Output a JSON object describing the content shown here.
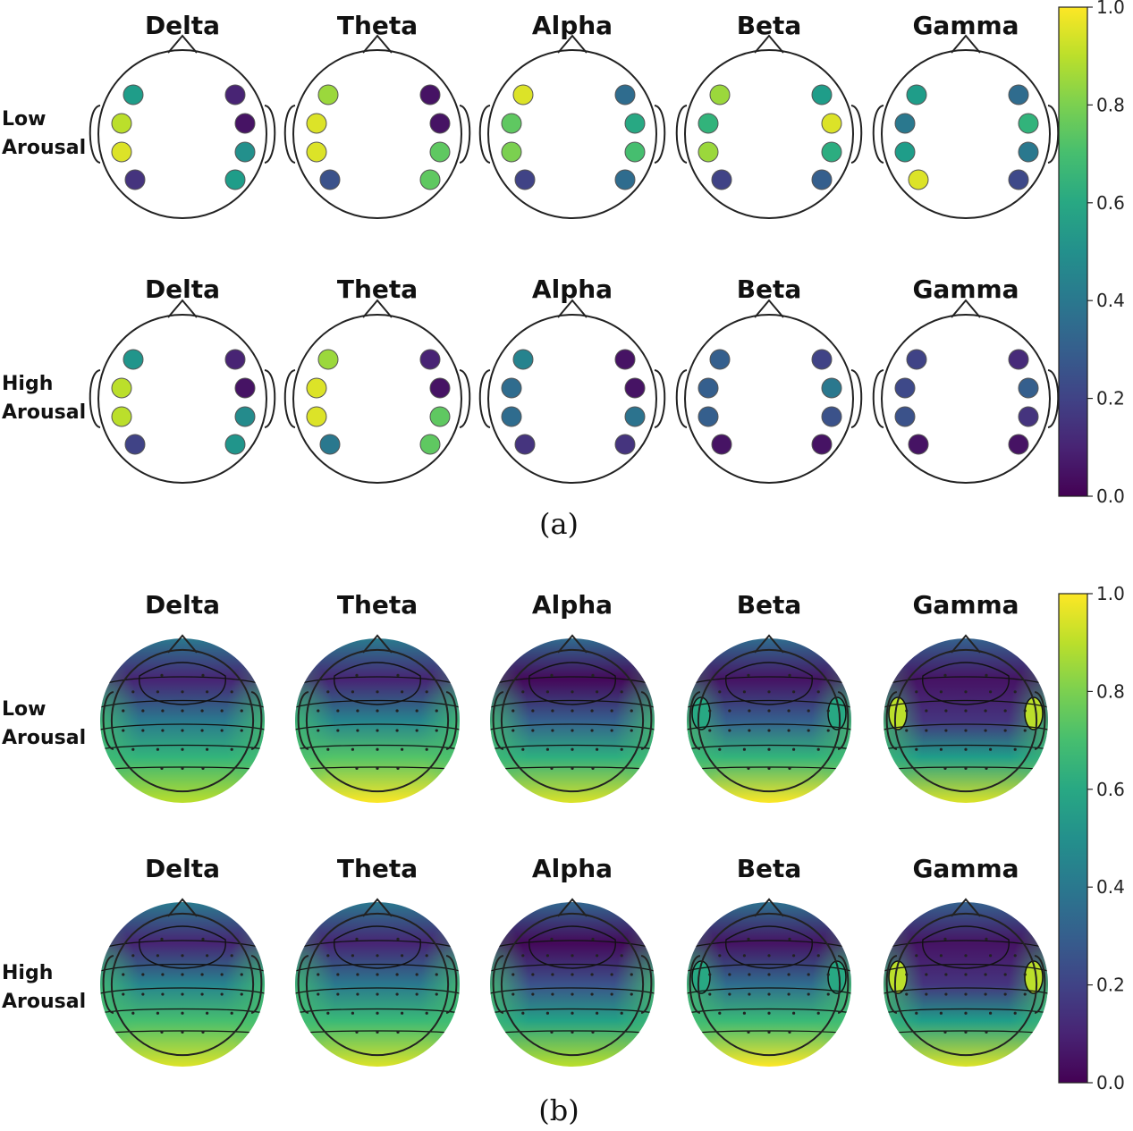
{
  "bands": [
    "Delta",
    "Theta",
    "Alpha",
    "Beta",
    "Gamma"
  ],
  "row_labels": {
    "low": [
      "Low",
      "Arousal"
    ],
    "high": [
      "High",
      "Arousal"
    ]
  },
  "panel_labels": {
    "a": "(a)",
    "b": "(b)"
  },
  "colorbar": {
    "colormap": "viridis",
    "range": [
      0,
      1
    ],
    "ticks": [
      "0.0",
      "0.2",
      "0.4",
      "0.6",
      "0.8",
      "1.0"
    ]
  },
  "panel_a": {
    "low": [
      [
        0.55,
        0.9,
        0.95,
        0.15,
        0.1,
        0.05,
        0.5,
        0.55
      ],
      [
        0.85,
        0.95,
        0.95,
        0.25,
        0.05,
        0.05,
        0.75,
        0.75
      ],
      [
        0.95,
        0.75,
        0.8,
        0.2,
        0.35,
        0.6,
        0.7,
        0.35
      ],
      [
        0.85,
        0.65,
        0.85,
        0.2,
        0.55,
        0.95,
        0.62,
        0.3
      ],
      [
        0.55,
        0.4,
        0.55,
        0.95,
        0.35,
        0.65,
        0.4,
        0.22
      ]
    ],
    "high": [
      [
        0.52,
        0.9,
        0.9,
        0.2,
        0.1,
        0.05,
        0.48,
        0.52
      ],
      [
        0.85,
        0.95,
        0.95,
        0.4,
        0.1,
        0.05,
        0.75,
        0.75
      ],
      [
        0.45,
        0.35,
        0.35,
        0.15,
        0.05,
        0.05,
        0.38,
        0.15
      ],
      [
        0.3,
        0.3,
        0.3,
        0.05,
        0.2,
        0.4,
        0.25,
        0.05
      ],
      [
        0.2,
        0.22,
        0.25,
        0.05,
        0.12,
        0.3,
        0.15,
        0.05
      ]
    ]
  },
  "panel_b": {
    "low": [
      {
        "front": 0.1,
        "mid": 0.4,
        "back": 0.9,
        "temporal": 0.0
      },
      {
        "front": 0.1,
        "mid": 0.45,
        "back": 1.0,
        "temporal": 0.0
      },
      {
        "front": 0.02,
        "mid": 0.3,
        "back": 0.95,
        "temporal": 0.0
      },
      {
        "front": 0.05,
        "mid": 0.3,
        "back": 1.0,
        "temporal": 0.6
      },
      {
        "front": 0.05,
        "mid": 0.15,
        "back": 0.95,
        "temporal": 0.9
      }
    ],
    "high": [
      {
        "front": 0.1,
        "mid": 0.45,
        "back": 0.95,
        "temporal": 0.0
      },
      {
        "front": 0.1,
        "mid": 0.4,
        "back": 0.95,
        "temporal": 0.0
      },
      {
        "front": 0.02,
        "mid": 0.25,
        "back": 0.9,
        "temporal": 0.0
      },
      {
        "front": 0.05,
        "mid": 0.35,
        "back": 1.0,
        "temporal": 0.6
      },
      {
        "front": 0.05,
        "mid": 0.15,
        "back": 0.95,
        "temporal": 0.9
      }
    ]
  }
}
